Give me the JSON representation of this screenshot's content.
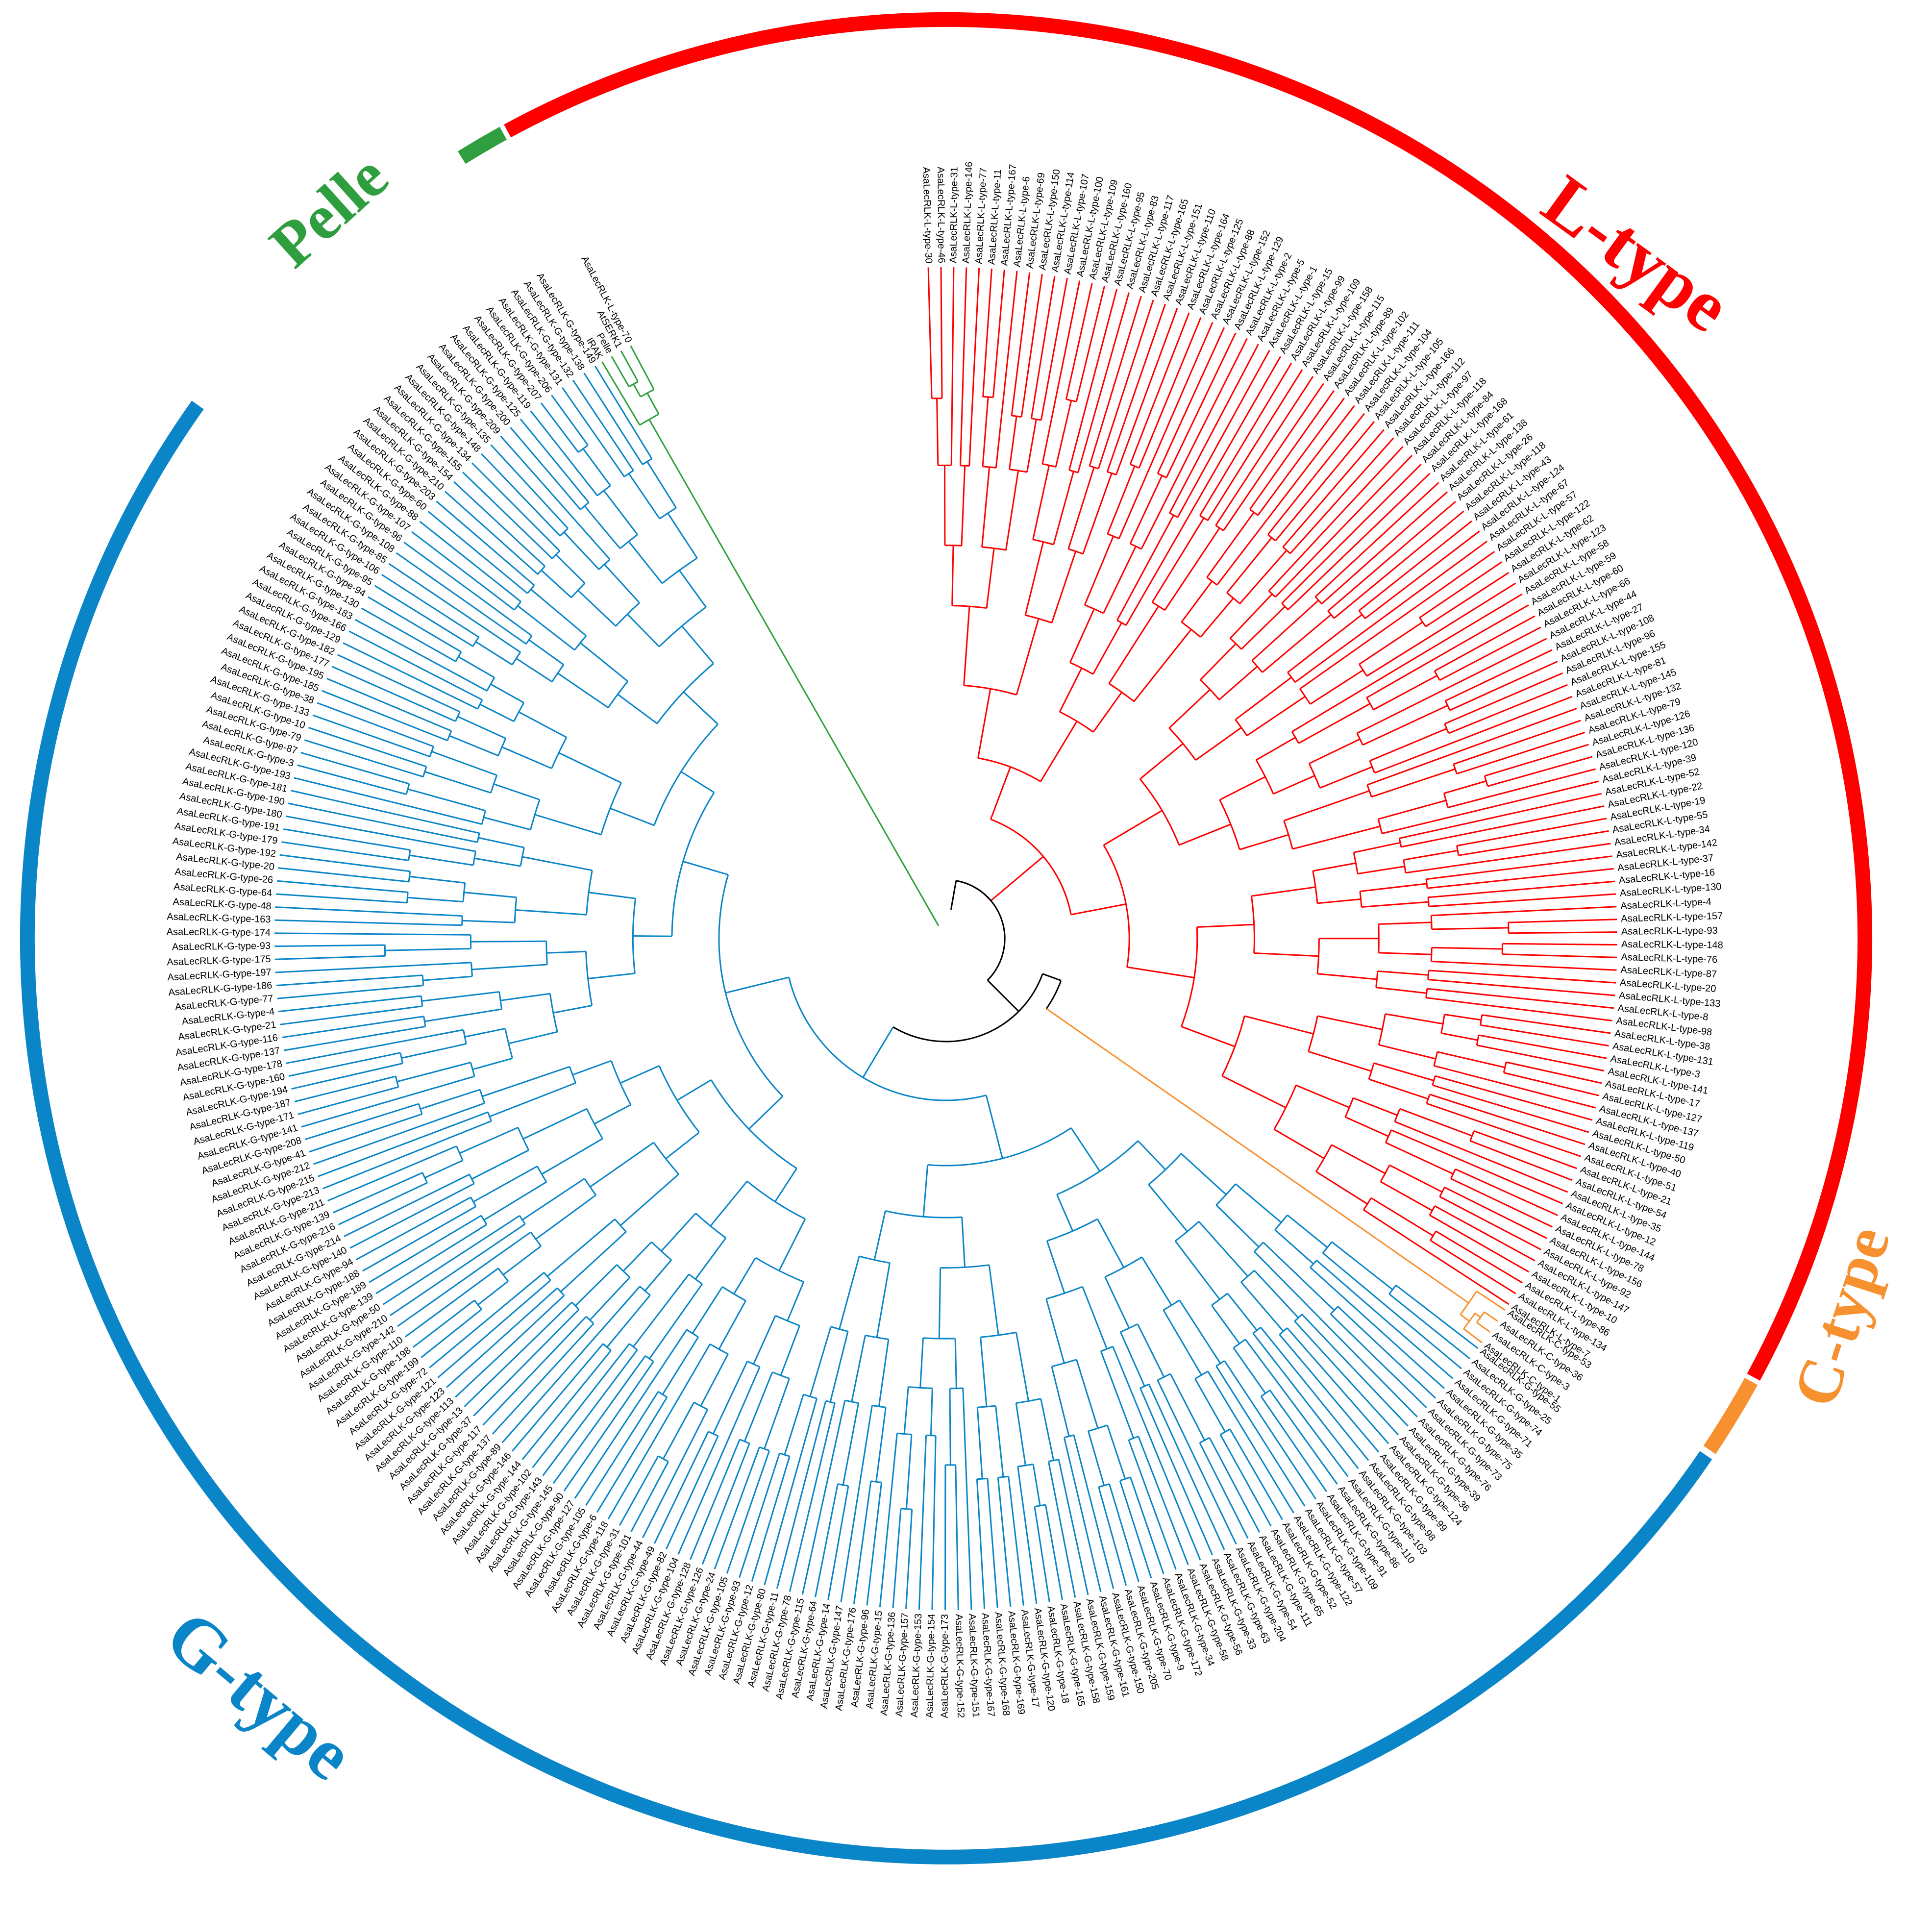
{
  "clades": [
    {
      "key": "ltype",
      "label": "L-type",
      "color": "#ff0000",
      "leaves": [
        "AsaLecRLK-L-type-30",
        "AsaLecRLK-L-type-46",
        "AsaLecRLK-L-type-31",
        "AsaLecRLK-L-type-146",
        "AsaLecRLK-L-type-77",
        "AsaLecRLK-L-type-11",
        "AsaLecRLK-L-type-167",
        "AsaLecRLK-L-type-6",
        "AsaLecRLK-L-type-69",
        "AsaLecRLK-L-type-150",
        "AsaLecRLK-L-type-114",
        "AsaLecRLK-L-type-107",
        "AsaLecRLK-L-type-100",
        "AsaLecRLK-L-type-109",
        "AsaLecRLK-L-type-160",
        "AsaLecRLK-L-type-95",
        "AsaLecRLK-L-type-83",
        "AsaLecRLK-L-type-117",
        "AsaLecRLK-L-type-165",
        "AsaLecRLK-L-type-151",
        "AsaLecRLK-L-type-110",
        "AsaLecRLK-L-type-164",
        "AsaLecRLK-L-type-125",
        "AsaLecRLK-L-type-88",
        "AsaLecRLK-L-type-152",
        "AsaLecRLK-L-type-129",
        "AsaLecRLK-L-type-2",
        "AsaLecRLK-L-type-5",
        "AsaLecRLK-L-type-1",
        "AsaLecRLK-L-type-15",
        "AsaLecRLK-L-type-99",
        "AsaLecRLK-L-type-109",
        "AsaLecRLK-L-type-158",
        "AsaLecRLK-L-type-115",
        "AsaLecRLK-L-type-89",
        "AsaLecRLK-L-type-102",
        "AsaLecRLK-L-type-111",
        "AsaLecRLK-L-type-104",
        "AsaLecRLK-L-type-105",
        "AsaLecRLK-L-type-166",
        "AsaLecRLK-L-type-112",
        "AsaLecRLK-L-type-97",
        "AsaLecRLK-L-type-118",
        "AsaLecRLK-L-type-84",
        "AsaLecRLK-L-type-168",
        "AsaLecRLK-L-type-61",
        "AsaLecRLK-L-type-138",
        "AsaLecRLK-L-type-26",
        "AsaLecRLK-L-type-118",
        "AsaLecRLK-L-type-43",
        "AsaLecRLK-L-type-124",
        "AsaLecRLK-L-type-67",
        "AsaLecRLK-L-type-57",
        "AsaLecRLK-L-type-122",
        "AsaLecRLK-L-type-62",
        "AsaLecRLK-L-type-123",
        "AsaLecRLK-L-type-58",
        "AsaLecRLK-L-type-59",
        "AsaLecRLK-L-type-60",
        "AsaLecRLK-L-type-66",
        "AsaLecRLK-L-type-44",
        "AsaLecRLK-L-type-27",
        "AsaLecRLK-L-type-108",
        "AsaLecRLK-L-type-96",
        "AsaLecRLK-L-type-155",
        "AsaLecRLK-L-type-81",
        "AsaLecRLK-L-type-145",
        "AsaLecRLK-L-type-132",
        "AsaLecRLK-L-type-79",
        "AsaLecRLK-L-type-126",
        "AsaLecRLK-L-type-136",
        "AsaLecRLK-L-type-120",
        "AsaLecRLK-L-type-39",
        "AsaLecRLK-L-type-52",
        "AsaLecRLK-L-type-22",
        "AsaLecRLK-L-type-19",
        "AsaLecRLK-L-type-55",
        "AsaLecRLK-L-type-34",
        "AsaLecRLK-L-type-142",
        "AsaLecRLK-L-type-37",
        "AsaLecRLK-L-type-16",
        "AsaLecRLK-L-type-130",
        "AsaLecRLK-L-type-4",
        "AsaLecRLK-L-type-157",
        "AsaLecRLK-L-type-93",
        "AsaLecRLK-L-type-148",
        "AsaLecRLK-L-type-76",
        "AsaLecRLK-L-type-87",
        "AsaLecRLK-L-type-20",
        "AsaLecRLK-L-type-133",
        "AsaLecRLK-L-type-8",
        "AsaLecRLK-L-type-98",
        "AsaLecRLK-L-type-38",
        "AsaLecRLK-L-type-131",
        "AsaLecRLK-L-type-3",
        "AsaLecRLK-L-type-141",
        "AsaLecRLK-L-type-17",
        "AsaLecRLK-L-type-127",
        "AsaLecRLK-L-type-137",
        "AsaLecRLK-L-type-119",
        "AsaLecRLK-L-type-50",
        "AsaLecRLK-L-type-40",
        "AsaLecRLK-L-type-51",
        "AsaLecRLK-L-type-21",
        "AsaLecRLK-L-type-54",
        "AsaLecRLK-L-type-35",
        "AsaLecRLK-L-type-12",
        "AsaLecRLK-L-type-144",
        "AsaLecRLK-L-type-78",
        "AsaLecRLK-L-type-156",
        "AsaLecRLK-L-type-92",
        "AsaLecRLK-L-type-147",
        "AsaLecRLK-L-type-10",
        "AsaLecRLK-L-type-86",
        "AsaLecRLK-L-type-134",
        "AsaLecRLK-L-type-7"
      ]
    },
    {
      "key": "ctype",
      "label": "C-type",
      "color": "#f7902e",
      "leaves": [
        "AsaLecRLK-C-type-53",
        "AsaLecRLK-C-type-36",
        "AsaLecRLK-C-type-3",
        "AsaLecRLK-C-type-1"
      ]
    },
    {
      "key": "gtype",
      "label": "G-type",
      "color": "#0a85c7",
      "leaves": [
        "AsaLecRLK-G-type-55",
        "AsaLecRLK-G-type-25",
        "AsaLecRLK-G-type-74",
        "AsaLecRLK-G-type-71",
        "AsaLecRLK-G-type-35",
        "AsaLecRLK-G-type-75",
        "AsaLecRLK-G-type-73",
        "AsaLecRLK-G-type-76",
        "AsaLecRLK-G-type-39",
        "AsaLecRLK-G-type-36",
        "AsaLecRLK-G-type-124",
        "AsaLecRLK-G-type-99",
        "AsaLecRLK-G-type-98",
        "AsaLecRLK-G-type-103",
        "AsaLecRLK-G-type-110",
        "AsaLecRLK-G-type-86",
        "AsaLecRLK-G-type-91",
        "AsaLecRLK-G-type-109",
        "AsaLecRLK-G-type-57",
        "AsaLecRLK-G-type-122",
        "AsaLecRLK-G-type-52",
        "AsaLecRLK-G-type-65",
        "AsaLecRLK-G-type-111",
        "AsaLecRLK-G-type-54",
        "AsaLecRLK-G-type-204",
        "AsaLecRLK-G-type-63",
        "AsaLecRLK-G-type-33",
        "AsaLecRLK-G-type-56",
        "AsaLecRLK-G-type-58",
        "AsaLecRLK-G-type-34",
        "AsaLecRLK-G-type-172",
        "AsaLecRLK-G-type-9",
        "AsaLecRLK-G-type-70",
        "AsaLecRLK-G-type-205",
        "AsaLecRLK-G-type-150",
        "AsaLecRLK-G-type-161",
        "AsaLecRLK-G-type-159",
        "AsaLecRLK-G-type-158",
        "AsaLecRLK-G-type-165",
        "AsaLecRLK-G-type-18",
        "AsaLecRLK-G-type-120",
        "AsaLecRLK-G-type-17",
        "AsaLecRLK-G-type-169",
        "AsaLecRLK-G-type-168",
        "AsaLecRLK-G-type-167",
        "AsaLecRLK-G-type-151",
        "AsaLecRLK-G-type-152",
        "AsaLecRLK-G-type-173",
        "AsaLecRLK-G-type-154",
        "AsaLecRLK-G-type-153",
        "AsaLecRLK-G-type-157",
        "AsaLecRLK-G-type-136",
        "AsaLecRLK-G-type-15",
        "AsaLecRLK-G-type-96",
        "AsaLecRLK-G-type-176",
        "AsaLecRLK-G-type-147",
        "AsaLecRLK-G-type-14",
        "AsaLecRLK-G-type-64",
        "AsaLecRLK-G-type-115",
        "AsaLecRLK-G-type-78",
        "AsaLecRLK-G-type-11",
        "AsaLecRLK-G-type-80",
        "AsaLecRLK-G-type-12",
        "AsaLecRLK-G-type-93",
        "AsaLecRLK-G-type-105",
        "AsaLecRLK-G-type-24",
        "AsaLecRLK-G-type-126",
        "AsaLecRLK-G-type-128",
        "AsaLecRLK-G-type-104",
        "AsaLecRLK-G-type-82",
        "AsaLecRLK-G-type-49",
        "AsaLecRLK-G-type-44",
        "AsaLecRLK-G-type-101",
        "AsaLecRLK-G-type-31",
        "AsaLecRLK-G-type-118",
        "AsaLecRLK-G-type-6",
        "AsaLecRLK-G-type-105",
        "AsaLecRLK-G-type-127",
        "AsaLecRLK-G-type-90",
        "AsaLecRLK-G-type-145",
        "AsaLecRLK-G-type-143",
        "AsaLecRLK-G-type-102",
        "AsaLecRLK-G-type-144",
        "AsaLecRLK-G-type-146",
        "AsaLecRLK-G-type-89",
        "AsaLecRLK-G-type-137",
        "AsaLecRLK-G-type-117",
        "AsaLecRLK-G-type-37",
        "AsaLecRLK-G-type-13",
        "AsaLecRLK-G-type-113",
        "AsaLecRLK-G-type-123",
        "AsaLecRLK-G-type-121",
        "AsaLecRLK-G-type-72",
        "AsaLecRLK-G-type-199",
        "AsaLecRLK-G-type-198",
        "AsaLecRLK-G-type-110",
        "AsaLecRLK-G-type-142",
        "AsaLecRLK-G-type-210",
        "AsaLecRLK-G-type-50",
        "AsaLecRLK-G-type-139",
        "AsaLecRLK-G-type-189",
        "AsaLecRLK-G-type-188",
        "AsaLecRLK-G-type-94",
        "AsaLecRLK-G-type-140",
        "AsaLecRLK-G-type-214",
        "AsaLecRLK-G-type-216",
        "AsaLecRLK-G-type-139",
        "AsaLecRLK-G-type-211",
        "AsaLecRLK-G-type-213",
        "AsaLecRLK-G-type-215",
        "AsaLecRLK-G-type-212",
        "AsaLecRLK-G-type-41",
        "AsaLecRLK-G-type-208",
        "AsaLecRLK-G-type-141",
        "AsaLecRLK-G-type-171",
        "AsaLecRLK-G-type-187",
        "AsaLecRLK-G-type-194",
        "AsaLecRLK-G-type-160",
        "AsaLecRLK-G-type-178",
        "AsaLecRLK-G-type-137",
        "AsaLecRLK-G-type-116",
        "AsaLecRLK-G-type-21",
        "AsaLecRLK-G-type-4",
        "AsaLecRLK-G-type-77",
        "AsaLecRLK-G-type-186",
        "AsaLecRLK-G-type-197",
        "AsaLecRLK-G-type-175",
        "AsaLecRLK-G-type-93",
        "AsaLecRLK-G-type-174",
        "AsaLecRLK-G-type-163",
        "AsaLecRLK-G-type-48",
        "AsaLecRLK-G-type-64",
        "AsaLecRLK-G-type-26",
        "AsaLecRLK-G-type-20",
        "AsaLecRLK-G-type-192",
        "AsaLecRLK-G-type-179",
        "AsaLecRLK-G-type-191",
        "AsaLecRLK-G-type-180",
        "AsaLecRLK-G-type-190",
        "AsaLecRLK-G-type-181",
        "AsaLecRLK-G-type-193",
        "AsaLecRLK-G-type-3",
        "AsaLecRLK-G-type-87",
        "AsaLecRLK-G-type-79",
        "AsaLecRLK-G-type-10",
        "AsaLecRLK-G-type-133",
        "AsaLecRLK-G-type-38",
        "AsaLecRLK-G-type-185",
        "AsaLecRLK-G-type-195",
        "AsaLecRLK-G-type-177",
        "AsaLecRLK-G-type-182",
        "AsaLecRLK-G-type-129",
        "AsaLecRLK-G-type-166",
        "AsaLecRLK-G-type-183",
        "AsaLecRLK-G-type-130",
        "AsaLecRLK-G-type-94",
        "AsaLecRLK-G-type-95",
        "AsaLecRLK-G-type-106",
        "AsaLecRLK-G-type-85",
        "AsaLecRLK-G-type-108",
        "AsaLecRLK-G-type-96",
        "AsaLecRLK-G-type-107",
        "AsaLecRLK-G-type-88",
        "AsaLecRLK-G-type-60",
        "AsaLecRLK-G-type-203",
        "AsaLecRLK-G-type-210",
        "AsaLecRLK-G-type-154",
        "AsaLecRLK-G-type-155",
        "AsaLecRLK-G-type-134",
        "AsaLecRLK-G-type-148",
        "AsaLecRLK-G-type-135",
        "AsaLecRLK-G-type-209",
        "AsaLecRLK-G-type-200",
        "AsaLecRLK-G-type-125",
        "AsaLecRLK-G-type-119",
        "AsaLecRLK-G-type-207",
        "AsaLecRLK-G-type-206",
        "AsaLecRLK-G-type-131",
        "AsaLecRLK-G-type-132",
        "AsaLecRLK-G-type-138",
        "AsaLecRLK-G-type-149"
      ]
    },
    {
      "key": "pelle",
      "label": "Pelle",
      "color": "#2e9e3e",
      "leaves": [
        "IRAK",
        "Pelle",
        "AtSERK1",
        "AsaLecRLK-L-type-70"
      ]
    }
  ]
}
